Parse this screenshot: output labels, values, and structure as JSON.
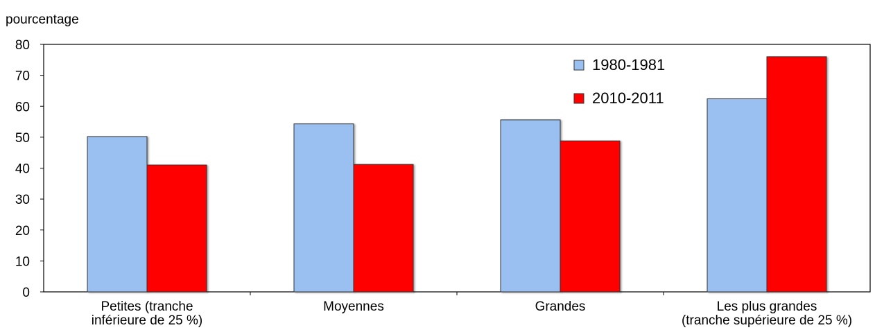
{
  "chart_data": {
    "type": "bar",
    "ylabel": "pourcentage",
    "ylim": [
      0,
      80
    ],
    "yticks": [
      0,
      10,
      20,
      30,
      40,
      50,
      60,
      70,
      80
    ],
    "categories": [
      [
        "Petites (tranche",
        "inférieure de 25 %)"
      ],
      [
        "Moyennes"
      ],
      [
        "Grandes"
      ],
      [
        "Les plus grandes",
        "(tranche supérieure de 25 %)"
      ]
    ],
    "series": [
      {
        "name": "1980-1981",
        "color": "#99c0f0",
        "values": [
          50.2,
          54.3,
          55.6,
          62.4
        ]
      },
      {
        "name": "2010-2011",
        "color": "#ff0000",
        "values": [
          41.0,
          41.2,
          48.8,
          76.0
        ]
      }
    ],
    "legend_position": "top-right",
    "grid": false
  }
}
